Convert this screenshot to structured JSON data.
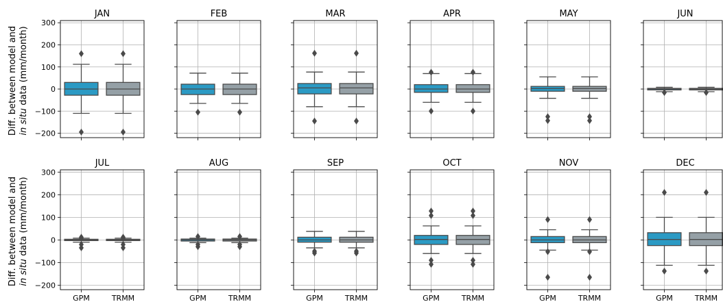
{
  "colors": {
    "gpm": "#2b9ac4",
    "trmm": "#95a0a6",
    "line": "#4a4a4a",
    "grid": "#b0b0b0"
  },
  "chart_data": {
    "type": "box",
    "ylabel_line1": "Diff. between model and",
    "ylabel_line2_italic": "in situ",
    "ylabel_line2_rest": " data (mm/month)",
    "categories": [
      "GPM",
      "TRMM"
    ],
    "ylim": [
      -220,
      310
    ],
    "yticks": [
      -200,
      -100,
      0,
      100,
      200,
      300
    ],
    "grid": true,
    "panels": [
      {
        "title": "JAN",
        "boxes": [
          {
            "name": "GPM",
            "q1": -28,
            "median": 0,
            "q3": 30,
            "whislo": -110,
            "whishi": 112,
            "fliers": [
              160,
              -195
            ]
          },
          {
            "name": "TRMM",
            "q1": -28,
            "median": 0,
            "q3": 30,
            "whislo": -110,
            "whishi": 112,
            "fliers": [
              160,
              -195
            ]
          }
        ]
      },
      {
        "title": "FEB",
        "boxes": [
          {
            "name": "GPM",
            "q1": -25,
            "median": 0,
            "q3": 22,
            "whislo": -65,
            "whishi": 72,
            "fliers": [
              -105
            ]
          },
          {
            "name": "TRMM",
            "q1": -25,
            "median": 0,
            "q3": 22,
            "whislo": -65,
            "whishi": 72,
            "fliers": [
              -105
            ]
          }
        ]
      },
      {
        "title": "MAR",
        "boxes": [
          {
            "name": "GPM",
            "q1": -22,
            "median": 5,
            "q3": 25,
            "whislo": -80,
            "whishi": 77,
            "fliers": [
              162,
              -145
            ]
          },
          {
            "name": "TRMM",
            "q1": -22,
            "median": 5,
            "q3": 25,
            "whislo": -80,
            "whishi": 77,
            "fliers": [
              162,
              -145
            ]
          }
        ]
      },
      {
        "title": "APR",
        "boxes": [
          {
            "name": "GPM",
            "q1": -15,
            "median": 0,
            "q3": 20,
            "whislo": -60,
            "whishi": 70,
            "fliers": [
              76,
              -100
            ]
          },
          {
            "name": "TRMM",
            "q1": -15,
            "median": 0,
            "q3": 20,
            "whislo": -60,
            "whishi": 70,
            "fliers": [
              76,
              -100
            ]
          }
        ]
      },
      {
        "title": "MAY",
        "boxes": [
          {
            "name": "GPM",
            "q1": -10,
            "median": 2,
            "q3": 12,
            "whislo": -42,
            "whishi": 55,
            "fliers": [
              -125,
              -143
            ]
          },
          {
            "name": "TRMM",
            "q1": -10,
            "median": 2,
            "q3": 12,
            "whislo": -42,
            "whishi": 55,
            "fliers": [
              -125,
              -143
            ]
          }
        ]
      },
      {
        "title": "JUN",
        "boxes": [
          {
            "name": "GPM",
            "q1": -4,
            "median": 0,
            "q3": 3,
            "whislo": -12,
            "whishi": 8,
            "fliers": [
              -16
            ]
          },
          {
            "name": "TRMM",
            "q1": -4,
            "median": 0,
            "q3": 3,
            "whislo": -12,
            "whishi": 8,
            "fliers": [
              -16
            ]
          }
        ]
      },
      {
        "title": "JUL",
        "boxes": [
          {
            "name": "GPM",
            "q1": -3,
            "median": 0,
            "q3": 3,
            "whislo": -10,
            "whishi": 8,
            "fliers": [
              12,
              6,
              -35,
              -20
            ]
          },
          {
            "name": "TRMM",
            "q1": -3,
            "median": 0,
            "q3": 3,
            "whislo": -10,
            "whishi": 8,
            "fliers": [
              12,
              6,
              -35,
              -20
            ]
          }
        ]
      },
      {
        "title": "AUG",
        "boxes": [
          {
            "name": "GPM",
            "q1": -5,
            "median": 0,
            "q3": 4,
            "whislo": -12,
            "whishi": 8,
            "fliers": [
              15,
              -30,
              -20
            ]
          },
          {
            "name": "TRMM",
            "q1": -5,
            "median": 0,
            "q3": 4,
            "whislo": -12,
            "whishi": 8,
            "fliers": [
              15,
              -30,
              -20
            ]
          }
        ]
      },
      {
        "title": "SEP",
        "boxes": [
          {
            "name": "GPM",
            "q1": -10,
            "median": 0,
            "q3": 12,
            "whislo": -35,
            "whishi": 38,
            "fliers": [
              -50,
              -58
            ]
          },
          {
            "name": "TRMM",
            "q1": -10,
            "median": 0,
            "q3": 12,
            "whislo": -35,
            "whishi": 38,
            "fliers": [
              -50,
              -58
            ]
          }
        ]
      },
      {
        "title": "OCT",
        "boxes": [
          {
            "name": "GPM",
            "q1": -20,
            "median": 2,
            "q3": 20,
            "whislo": -60,
            "whishi": 62,
            "fliers": [
              108,
              128,
              -90,
              -108
            ]
          },
          {
            "name": "TRMM",
            "q1": -20,
            "median": 2,
            "q3": 20,
            "whislo": -60,
            "whishi": 62,
            "fliers": [
              108,
              128,
              -90,
              -108
            ]
          }
        ]
      },
      {
        "title": "NOV",
        "boxes": [
          {
            "name": "GPM",
            "q1": -12,
            "median": 0,
            "q3": 15,
            "whislo": -45,
            "whishi": 45,
            "fliers": [
              90,
              -52,
              -165
            ]
          },
          {
            "name": "TRMM",
            "q1": -12,
            "median": 0,
            "q3": 15,
            "whislo": -45,
            "whishi": 45,
            "fliers": [
              90,
              -52,
              -165
            ]
          }
        ]
      },
      {
        "title": "DEC",
        "boxes": [
          {
            "name": "GPM",
            "q1": -25,
            "median": 2,
            "q3": 32,
            "whislo": -112,
            "whishi": 100,
            "fliers": [
              210,
              -138
            ]
          },
          {
            "name": "TRMM",
            "q1": -25,
            "median": 2,
            "q3": 32,
            "whislo": -112,
            "whishi": 100,
            "fliers": [
              210,
              -138
            ]
          }
        ]
      }
    ]
  }
}
